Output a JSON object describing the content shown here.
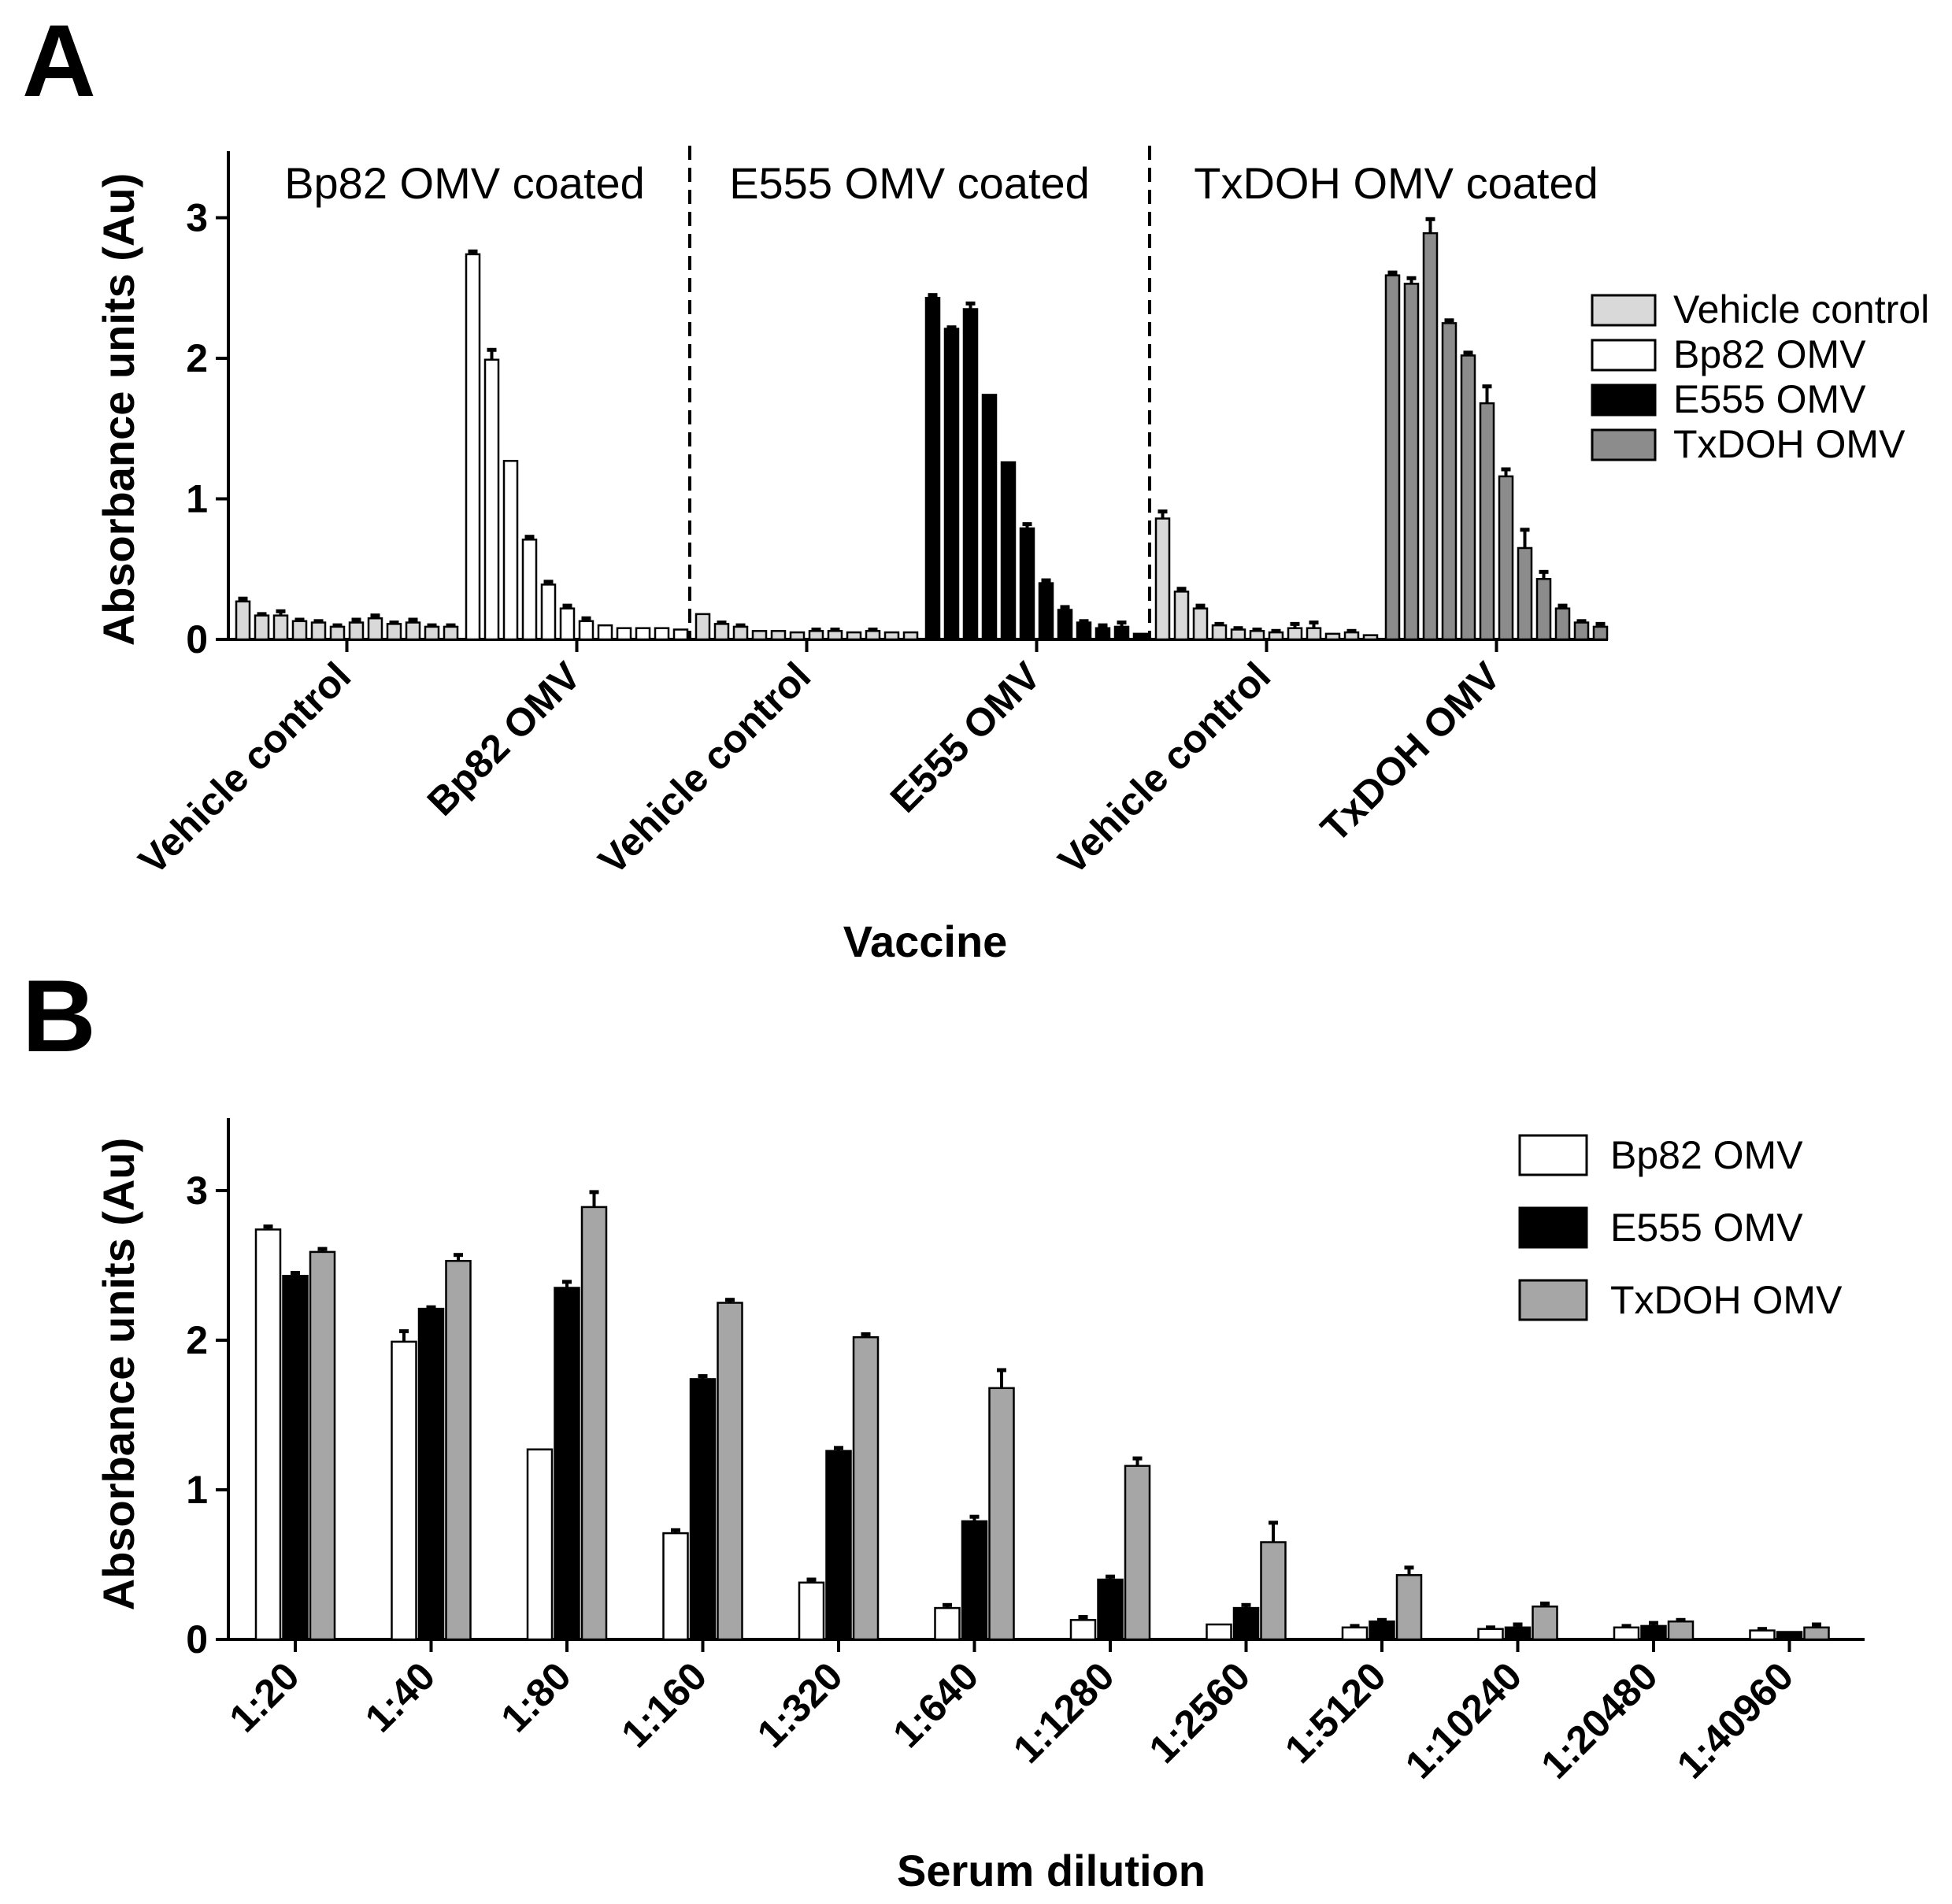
{
  "chart_data": [
    {
      "id": "A",
      "type": "bar",
      "panel_label": "A",
      "ylabel": "Absorbance units (Au)",
      "xlabel": "Vaccine",
      "ylim": [
        0,
        3.5
      ],
      "yticks": [
        "0",
        "1",
        "2",
        "3"
      ],
      "sections": [
        "Bp82 OMV coated",
        "E555 OMV coated",
        "TxDOH OMV coated"
      ],
      "categories": [
        "Vehicle  control",
        "Bp82 OMV",
        "Vehicle  control",
        "E555 OMV",
        "Vehicle  control",
        "TxDOH OMV"
      ],
      "legend": [
        {
          "name": "Vehicle  control",
          "color": "#d9d9d9"
        },
        {
          "name": "Bp82 OMV",
          "color": "#ffffff"
        },
        {
          "name": "E555 OMV",
          "color": "#000000"
        },
        {
          "name": "TxDOH OMV",
          "color": "#8c8c8c"
        }
      ],
      "groups": [
        {
          "series": "Vehicle  control",
          "values": [
            0.27,
            0.17,
            0.17,
            0.13,
            0.12,
            0.09,
            0.12,
            0.15,
            0.11,
            0.12,
            0.09,
            0.09
          ],
          "errors": [
            0.02,
            0.01,
            0.03,
            0.01,
            0.01,
            0.01,
            0.02,
            0.02,
            0.01,
            0.02,
            0.01,
            0.01
          ]
        },
        {
          "series": "Bp82 OMV",
          "values": [
            2.74,
            1.99,
            1.27,
            0.71,
            0.39,
            0.22,
            0.13,
            0.1,
            0.08,
            0.08,
            0.08,
            0.07
          ],
          "errors": [
            0.02,
            0.07,
            0.0,
            0.02,
            0.02,
            0.02,
            0.02,
            0.0,
            0.0,
            0.0,
            0.0,
            0.0
          ]
        },
        {
          "series": "Vehicle  control",
          "values": [
            0.18,
            0.11,
            0.09,
            0.06,
            0.06,
            0.05,
            0.06,
            0.06,
            0.05,
            0.06,
            0.05,
            0.05
          ],
          "errors": [
            0.0,
            0.01,
            0.01,
            0.0,
            0.0,
            0.0,
            0.01,
            0.01,
            0.0,
            0.01,
            0.0,
            0.0
          ]
        },
        {
          "series": "E555 OMV",
          "values": [
            2.43,
            2.21,
            2.35,
            1.74,
            1.26,
            0.79,
            0.4,
            0.21,
            0.12,
            0.08,
            0.09,
            0.04
          ],
          "errors": [
            0.02,
            0.01,
            0.04,
            0.0,
            0.0,
            0.03,
            0.02,
            0.02,
            0.01,
            0.02,
            0.03,
            0.0
          ]
        },
        {
          "series": "Vehicle  control",
          "values": [
            0.86,
            0.34,
            0.22,
            0.1,
            0.07,
            0.06,
            0.05,
            0.08,
            0.08,
            0.04,
            0.05,
            0.03
          ],
          "errors": [
            0.05,
            0.02,
            0.02,
            0.01,
            0.01,
            0.01,
            0.01,
            0.03,
            0.04,
            0.0,
            0.01,
            0.0
          ]
        },
        {
          "series": "TxDOH OMV",
          "values": [
            2.59,
            2.53,
            2.89,
            2.25,
            2.02,
            1.68,
            1.16,
            0.65,
            0.43,
            0.22,
            0.12,
            0.09
          ],
          "errors": [
            0.02,
            0.04,
            0.1,
            0.02,
            0.02,
            0.12,
            0.05,
            0.13,
            0.05,
            0.02,
            0.01,
            0.02
          ]
        }
      ]
    },
    {
      "id": "B",
      "type": "bar",
      "panel_label": "B",
      "ylabel": "Absorbance units (Au)",
      "xlabel": "Serum dilution",
      "ylim": [
        0,
        3.5
      ],
      "yticks": [
        "0",
        "1",
        "2",
        "3"
      ],
      "categories": [
        "1:20",
        "1:40",
        "1:80",
        "1:160",
        "1:320",
        "1:640",
        "1:1280",
        "1:2560",
        "1:5120",
        "1:10240",
        "1:20480",
        "1:40960"
      ],
      "series": [
        {
          "name": "Bp82 OMV",
          "color": "#ffffff",
          "values": [
            2.74,
            1.99,
            1.27,
            0.71,
            0.38,
            0.21,
            0.13,
            0.1,
            0.08,
            0.07,
            0.08,
            0.06
          ],
          "errors": [
            0.02,
            0.07,
            0.0,
            0.02,
            0.02,
            0.02,
            0.02,
            0.0,
            0.01,
            0.01,
            0.01,
            0.01
          ]
        },
        {
          "name": "E555 OMV",
          "color": "#000000",
          "values": [
            2.43,
            2.21,
            2.35,
            1.74,
            1.26,
            0.79,
            0.4,
            0.21,
            0.12,
            0.08,
            0.09,
            0.05
          ],
          "errors": [
            0.02,
            0.01,
            0.04,
            0.02,
            0.02,
            0.03,
            0.02,
            0.02,
            0.01,
            0.02,
            0.02,
            0.0
          ]
        },
        {
          "name": "TxDOH OMV",
          "color": "#a6a6a6",
          "values": [
            2.59,
            2.53,
            2.89,
            2.25,
            2.02,
            1.68,
            1.16,
            0.65,
            0.43,
            0.22,
            0.12,
            0.08
          ],
          "errors": [
            0.02,
            0.04,
            0.1,
            0.02,
            0.02,
            0.12,
            0.05,
            0.13,
            0.05,
            0.02,
            0.01,
            0.02
          ]
        }
      ]
    }
  ]
}
